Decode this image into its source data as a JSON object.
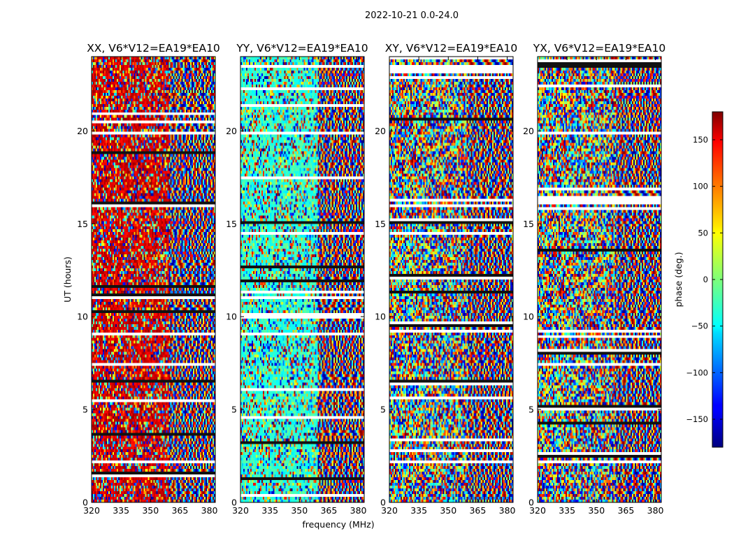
{
  "figure": {
    "suptitle": "2022-10-21 0.0-24.0",
    "xlabel": "frequency (MHz)",
    "ylabel": "UT (hours)",
    "colorbar_label": "phase (deg.)",
    "colorbar_min": -180,
    "colorbar_max": 180,
    "colorbar_ticks": [
      "150",
      "100",
      "50",
      "0",
      "−50",
      "−100",
      "−150"
    ],
    "colormap": "jet"
  },
  "chart_data": [
    {
      "type": "heatmap",
      "title": "XX, V6*V12=EA19*EA10",
      "x_ticks": [
        "320",
        "335",
        "350",
        "365",
        "380"
      ],
      "y_ticks": [
        "0",
        "5",
        "10",
        "15",
        "20"
      ],
      "xlim": [
        320,
        383
      ],
      "ylim": [
        0,
        24
      ],
      "tone": 150
    },
    {
      "type": "heatmap",
      "title": "YY, V6*V12=EA19*EA10",
      "x_ticks": [
        "320",
        "335",
        "350",
        "365",
        "380"
      ],
      "y_ticks": [
        "0",
        "5",
        "10",
        "15",
        "20"
      ],
      "xlim": [
        320,
        383
      ],
      "ylim": [
        0,
        24
      ],
      "tone": -30
    },
    {
      "type": "heatmap",
      "title": "XY, V6*V12=EA19*EA10",
      "x_ticks": [
        "320",
        "335",
        "350",
        "365",
        "380"
      ],
      "y_ticks": [
        "0",
        "5",
        "10",
        "15",
        "20"
      ],
      "xlim": [
        320,
        383
      ],
      "ylim": [
        0,
        24
      ],
      "tone": null
    },
    {
      "type": "heatmap",
      "title": "YX, V6*V12=EA19*EA10",
      "x_ticks": [
        "320",
        "335",
        "350",
        "365",
        "380"
      ],
      "y_ticks": [
        "0",
        "5",
        "10",
        "15",
        "20"
      ],
      "xlim": [
        320,
        383
      ],
      "ylim": [
        0,
        24
      ],
      "tone": null
    }
  ]
}
